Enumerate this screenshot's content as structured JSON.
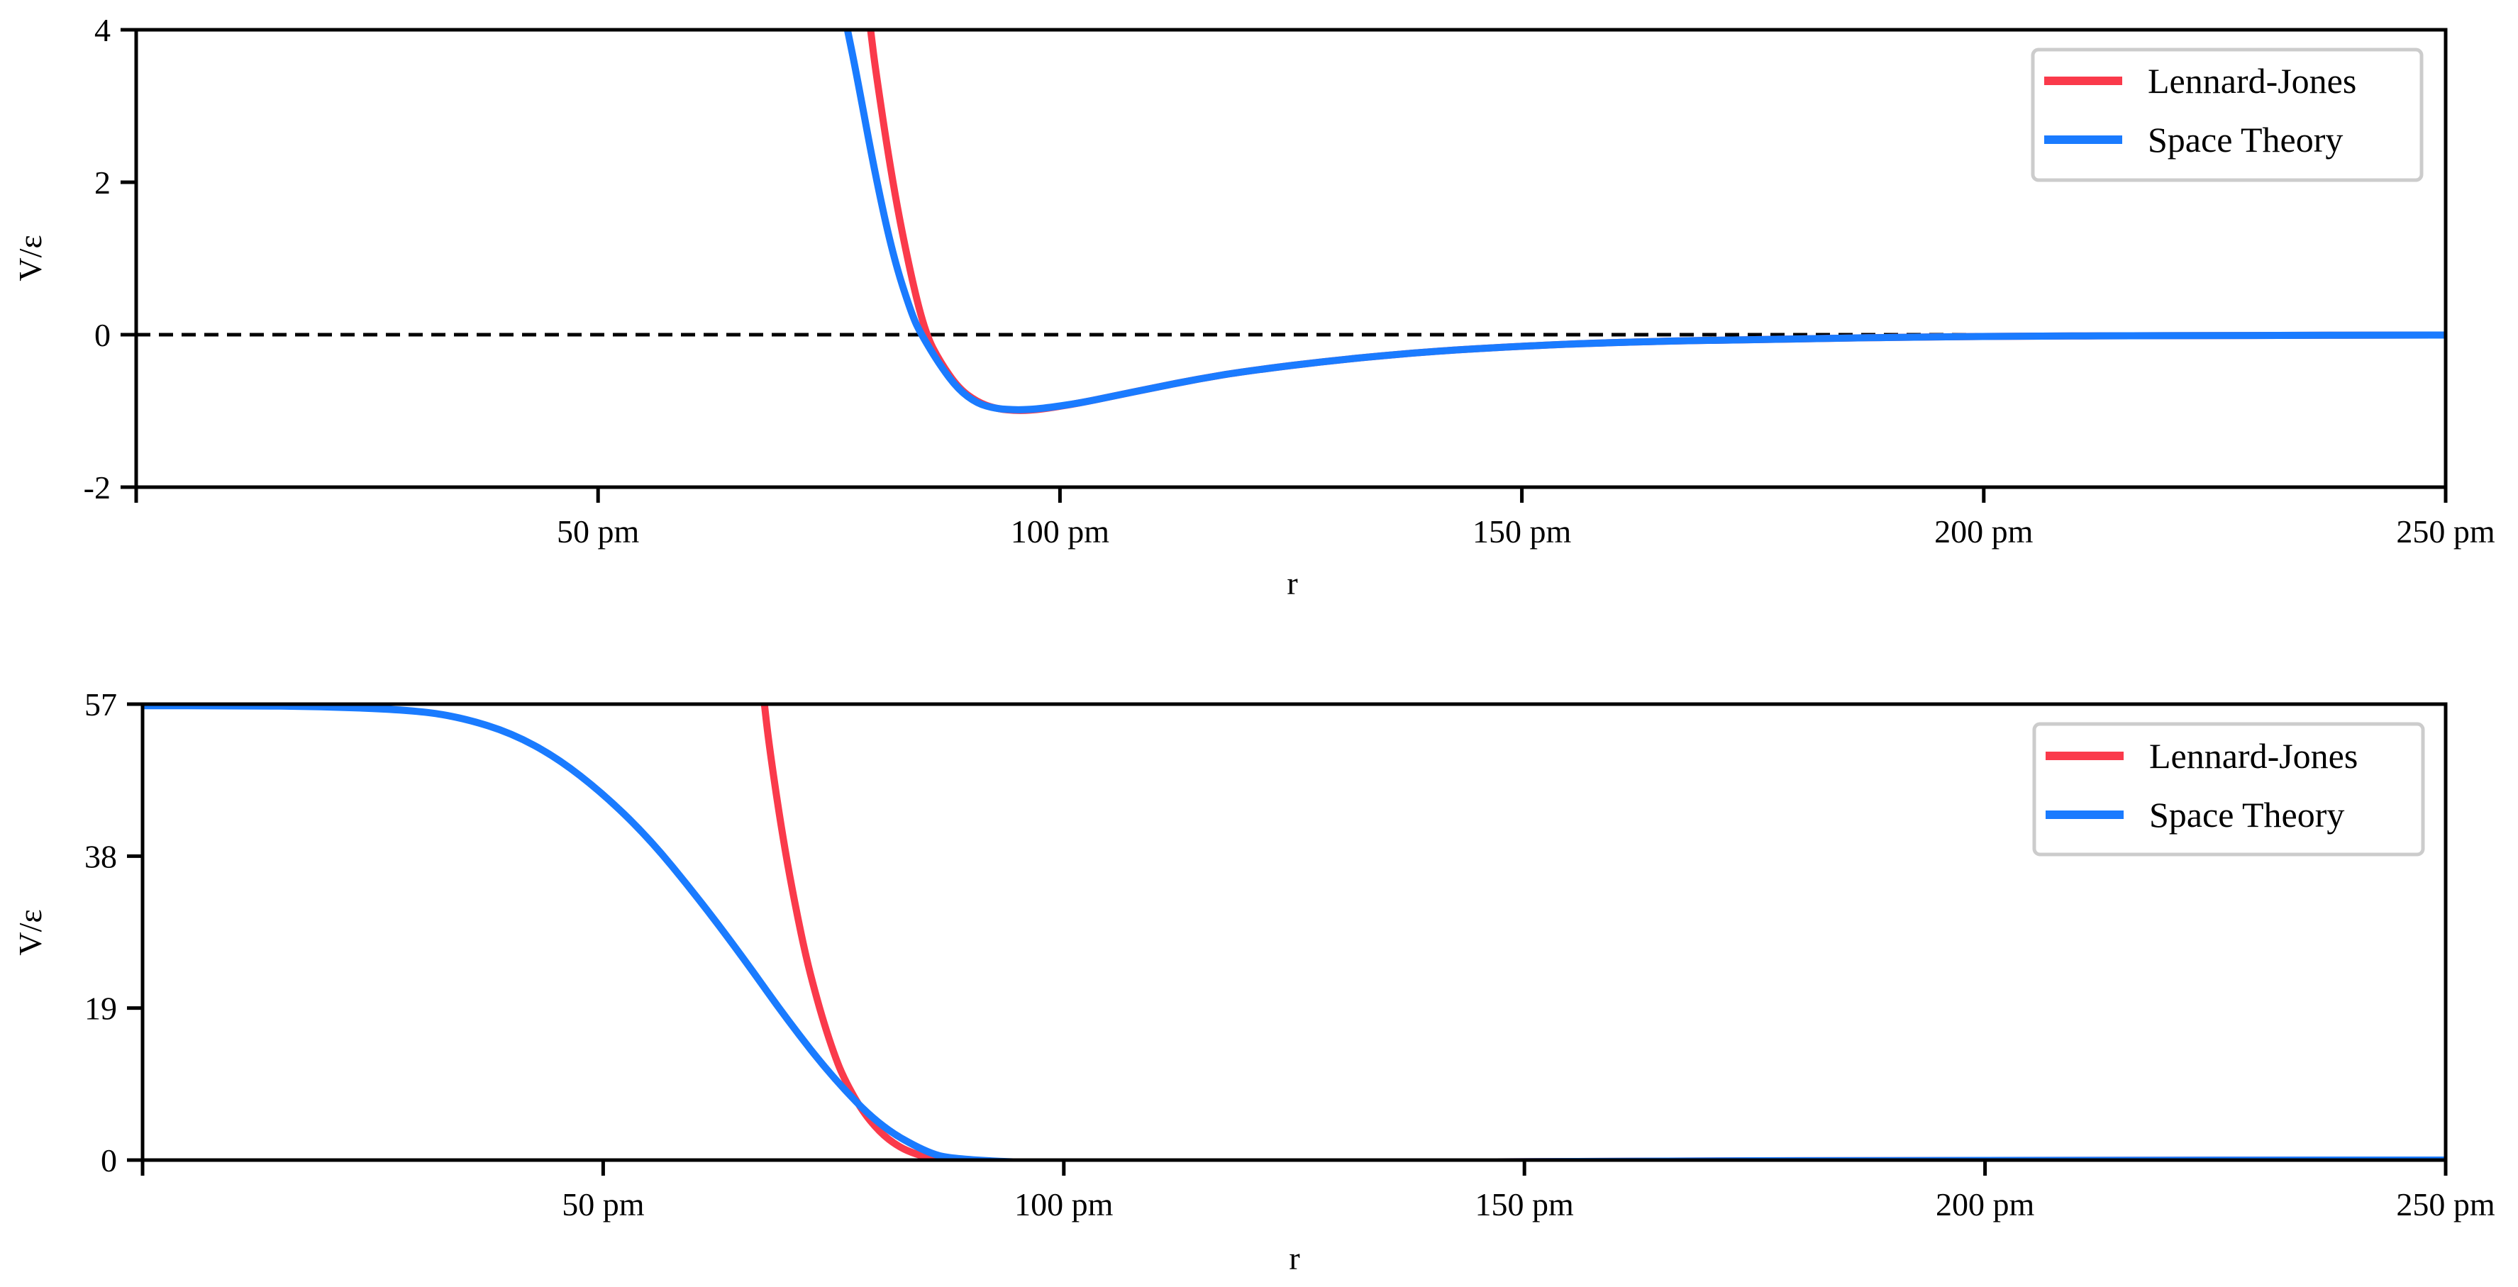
{
  "colors": {
    "lennard_jones": "#fa3a4b",
    "space_theory": "#1a7bff",
    "axis": "#000000",
    "legend_border": "#cccccc",
    "zero_line": "#000000"
  },
  "chart_data": [
    {
      "type": "line",
      "panel": "top",
      "title": "",
      "xlabel": "r",
      "ylabel": "V/ε",
      "xlim": [
        0,
        250
      ],
      "ylim": [
        -2,
        4
      ],
      "x_ticks": [
        0,
        50,
        100,
        150,
        200,
        250
      ],
      "x_tick_labels": [
        "",
        "50 pm",
        "100 pm",
        "150 pm",
        "200 pm",
        "250 pm"
      ],
      "y_ticks": [
        -2,
        0,
        2,
        4
      ],
      "y_tick_labels": [
        "-2",
        "0",
        "2",
        "4"
      ],
      "grid": false,
      "legend_position": "upper right",
      "reference_line": {
        "y": 0,
        "style": "dashed"
      },
      "series": [
        {
          "name": "Lennard-Jones",
          "x": [
            79.5,
            80,
            82,
            84,
            85.5,
            87,
            89,
            91,
            93,
            95.5,
            98,
            102,
            106,
            110,
            115,
            120,
            130,
            140,
            150,
            160,
            175,
            200,
            225,
            250
          ],
          "y": [
            4.0,
            3.5,
            1.9,
            0.7,
            0.0,
            -0.35,
            -0.7,
            -0.88,
            -0.97,
            -1.0,
            -0.98,
            -0.9,
            -0.8,
            -0.7,
            -0.58,
            -0.48,
            -0.33,
            -0.22,
            -0.15,
            -0.1,
            -0.06,
            -0.02,
            -0.01,
            -0.005
          ]
        },
        {
          "name": "Space Theory",
          "x": [
            77,
            78,
            80,
            82,
            84,
            85,
            87,
            89,
            91,
            93,
            95.5,
            98,
            102,
            106,
            110,
            115,
            120,
            130,
            140,
            150,
            160,
            175,
            200,
            225,
            250
          ],
          "y": [
            4.0,
            3.4,
            2.1,
            1.0,
            0.25,
            0.0,
            -0.4,
            -0.72,
            -0.9,
            -0.97,
            -0.99,
            -0.97,
            -0.9,
            -0.8,
            -0.7,
            -0.58,
            -0.48,
            -0.33,
            -0.22,
            -0.15,
            -0.1,
            -0.06,
            -0.02,
            -0.01,
            -0.005
          ]
        }
      ]
    },
    {
      "type": "line",
      "panel": "bottom",
      "title": "",
      "xlabel": "r",
      "ylabel": "V/ε",
      "xlim": [
        0,
        250
      ],
      "ylim": [
        0,
        57
      ],
      "x_ticks": [
        0,
        50,
        100,
        150,
        200,
        250
      ],
      "x_tick_labels": [
        "",
        "50 pm",
        "100 pm",
        "150 pm",
        "200 pm",
        "250 pm"
      ],
      "y_ticks": [
        0,
        19,
        38,
        57
      ],
      "y_tick_labels": [
        "0",
        "19",
        "38",
        "57"
      ],
      "grid": false,
      "legend_position": "upper right",
      "series": [
        {
          "name": "Lennard-Jones",
          "x": [
            67.5,
            68,
            69,
            70,
            71,
            72,
            73,
            74,
            75,
            76,
            78,
            80,
            82,
            84,
            86,
            88,
            100,
            150,
            200,
            250
          ],
          "y": [
            57,
            52,
            44,
            37,
            31,
            25.5,
            21,
            17,
            13.5,
            10.5,
            6.3,
            3.5,
            1.7,
            0.7,
            0.15,
            0,
            -0.5,
            -0.15,
            -0.02,
            0
          ]
        },
        {
          "name": "Space Theory",
          "x": [
            0,
            10,
            20,
            30,
            35,
            40,
            45,
            50,
            55,
            60,
            65,
            70,
            75,
            80,
            85,
            88,
            100,
            150,
            200,
            250
          ],
          "y": [
            56.8,
            56.8,
            56.7,
            56.2,
            55.2,
            53.4,
            50.3,
            45.8,
            40.2,
            33.2,
            25.6,
            17.5,
            10.2,
            4.3,
            1.0,
            0.1,
            -0.5,
            -0.15,
            -0.02,
            0
          ]
        }
      ]
    }
  ],
  "legend": {
    "items": [
      {
        "label": "Lennard-Jones"
      },
      {
        "label": "Space Theory"
      }
    ]
  }
}
